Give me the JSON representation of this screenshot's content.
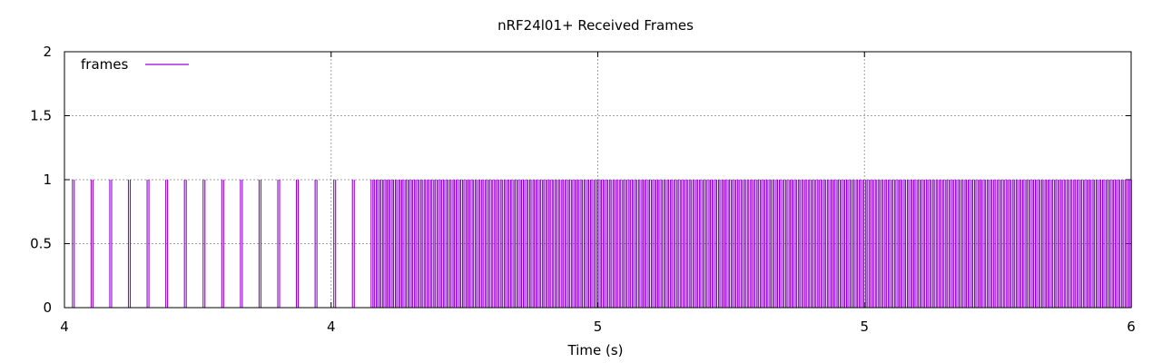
{
  "chart_data": {
    "type": "line",
    "title": "nRF24l01+ Received Frames",
    "xlabel": "Time (s)",
    "ylabel": "",
    "xlim": [
      4.0,
      6.0
    ],
    "ylim": [
      0,
      2
    ],
    "x_tick_values": [
      4.0,
      4.5,
      5.0,
      5.5,
      6.0
    ],
    "x_tick_labels": [
      "4",
      "4",
      "5",
      "5",
      "6"
    ],
    "y_tick_values": [
      0,
      0.5,
      1,
      1.5,
      2
    ],
    "y_tick_labels": [
      "0",
      "0.5",
      "1",
      "1.5",
      "2"
    ],
    "grid": true,
    "legend_position": "top-left",
    "series_color": "#9400d3",
    "series": [
      {
        "name": "frames",
        "frame_spacing_s": [
          {
            "from": 4.015,
            "to": 4.555,
            "interval": 0.035
          },
          {
            "from": 4.575,
            "to": 6.0,
            "interval": 0.006
          }
        ]
      }
    ]
  }
}
